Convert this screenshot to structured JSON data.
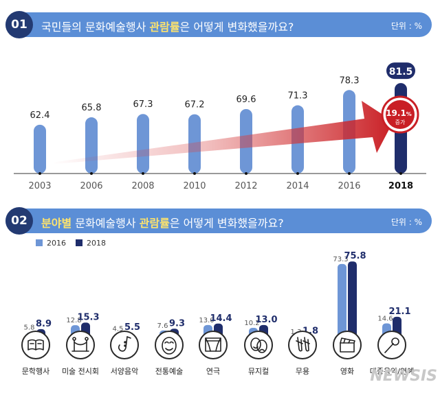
{
  "section1": {
    "number": "01",
    "title_pre": "국민들의 문화예술행사 ",
    "title_highlight": "관람률",
    "title_post": "은 어떻게 변화했을까요?",
    "unit": "단위 : %",
    "increase_value": "19.1",
    "increase_pct": "%",
    "increase_label": "증가"
  },
  "section2": {
    "number": "02",
    "title_highlight1": "분야별",
    "title_mid": " 문화예술행사 ",
    "title_highlight2": "관람률",
    "title_post": "은 어떻게 변화했을까요?",
    "unit": "단위 : %"
  },
  "watermark": "NEWSIS",
  "colors": {
    "bar_light": "#6e96d6",
    "bar_dark": "#1f2d6b",
    "banner": "#5b8ed6",
    "circle": "#233a72",
    "arrow": "#d32a2e"
  },
  "chart_data": [
    {
      "type": "bar",
      "title": "국민들의 문화예술행사 관람률은 어떻게 변화했을까요?",
      "unit": "단위 : %",
      "categories": [
        "2003",
        "2006",
        "2008",
        "2010",
        "2012",
        "2014",
        "2016",
        "2018"
      ],
      "values": [
        62.4,
        65.8,
        67.3,
        67.2,
        69.6,
        71.3,
        78.3,
        81.5
      ],
      "labels": [
        "62.4",
        "65.8",
        "67.3",
        "67.2",
        "69.6",
        "71.3",
        "78.3",
        "81.5"
      ],
      "highlight_index": 7,
      "annotation": "19.1% 증가"
    },
    {
      "type": "bar",
      "title": "분야별 문화예술행사 관람률은 어떻게 변화했을까요?",
      "unit": "단위 : %",
      "categories": [
        "문학행사",
        "미술 전시회",
        "서양음악",
        "전통예술",
        "연극",
        "뮤지컬",
        "무용",
        "영화",
        "대중음악/연예"
      ],
      "icons": [
        "book-icon",
        "gallery-icon",
        "saxophone-icon",
        "mask-icon",
        "theater-icon",
        "comedy-tragedy-icon",
        "ballet-shoes-icon",
        "clapperboard-icon",
        "microphone-icon"
      ],
      "series": [
        {
          "name": "2016",
          "values": [
            5.8,
            12.8,
            4.5,
            7.6,
            13.0,
            10.2,
            1.3,
            73.3,
            14.6
          ],
          "labels": [
            "5.8",
            "12.8",
            "4.5",
            "7.6",
            "13.0",
            "10.2",
            "1.3",
            "73.3",
            "14.6"
          ]
        },
        {
          "name": "2018",
          "values": [
            8.9,
            15.3,
            5.5,
            9.3,
            14.4,
            13.0,
            1.8,
            75.8,
            21.1
          ],
          "labels": [
            "8.9",
            "15.3",
            "5.5",
            "9.3",
            "14.4",
            "13.0",
            "1.8",
            "75.8",
            "21.1"
          ]
        }
      ]
    }
  ]
}
